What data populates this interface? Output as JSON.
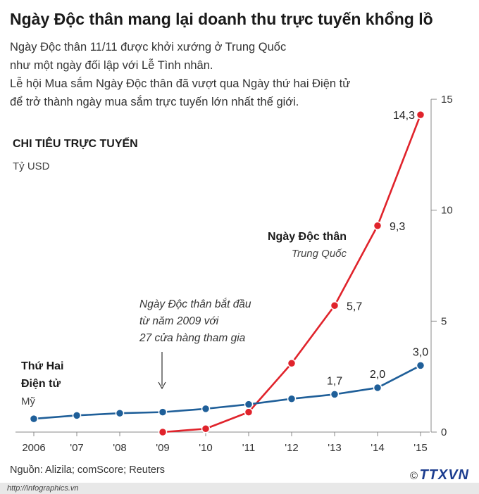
{
  "header": {
    "title": "Ngày Độc thân mang lại doanh thu trực tuyến khổng lồ",
    "intro_lines": [
      "Ngày Độc thân 11/11 được khởi xướng ở Trung Quốc",
      "như một ngày đối lập với Lễ Tình nhân.",
      "Lễ hội Mua sắm Ngày Độc thân đã vượt qua Ngày thứ hai Điện tử",
      "để trở thành ngày mua sắm trực tuyến lớn nhất thế giới."
    ]
  },
  "section": {
    "title": "CHI TIÊU TRỰC TUYẾN",
    "unit": "Tỷ USD"
  },
  "annotation": {
    "lines": [
      "Ngày Độc thân bắt đầu",
      "từ năm 2009 với",
      "27 cửa hàng tham gia"
    ]
  },
  "footer": {
    "source": "Nguồn: Alizila; comScore; Reuters",
    "url": "http://infographics.vn",
    "copyright": "©",
    "logo": "TTXVN"
  },
  "colors": {
    "singles_day": "#e0232b",
    "cyber_monday": "#1f5f99",
    "axis": "#777777"
  },
  "chart_data": {
    "type": "line",
    "categories": [
      "2006",
      "'07",
      "'08",
      "'09",
      "'10",
      "'11",
      "'12",
      "'13",
      "'14",
      "'15"
    ],
    "y_ticks": [
      "0",
      "5",
      "10",
      "15"
    ],
    "ylim": [
      0,
      15
    ],
    "series": [
      {
        "key": "singles_day",
        "name": "Ngày Độc thân",
        "subname": "Trung Quốc",
        "color": "#e0232b",
        "values": [
          null,
          null,
          null,
          0.0,
          0.15,
          0.9,
          3.1,
          5.7,
          9.3,
          14.3
        ],
        "labels": [
          "",
          "",
          "",
          "",
          "",
          "",
          "",
          "5,7",
          "9,3",
          "14,3"
        ]
      },
      {
        "key": "cyber_monday",
        "name": "Thứ Hai Điện tử",
        "subname": "Mỹ",
        "color": "#1f5f99",
        "values": [
          0.6,
          0.75,
          0.85,
          0.9,
          1.05,
          1.25,
          1.5,
          1.7,
          2.0,
          3.0
        ],
        "labels": [
          "",
          "",
          "",
          "",
          "",
          "",
          "",
          "1,7",
          "2,0",
          "3,0"
        ]
      }
    ]
  }
}
